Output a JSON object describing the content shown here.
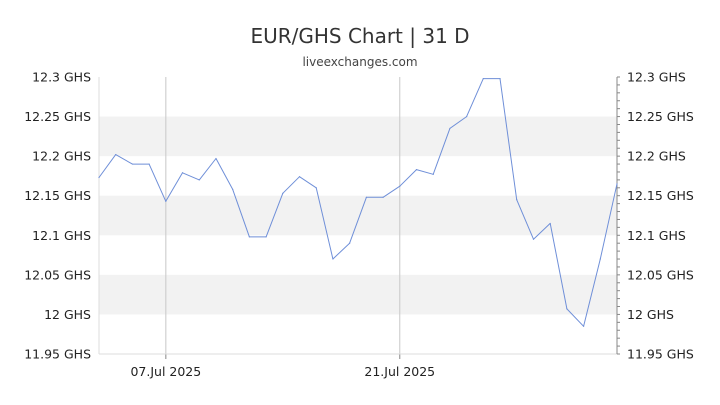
{
  "header": {
    "title": "EUR/GHS Chart | 31 D",
    "subtitle": "liveexchanges.com"
  },
  "colors": {
    "line": "#6f8fd8",
    "band": "#f2f2f2",
    "vgrid": "#c8c8c8",
    "axis": "#888888"
  },
  "chart_data": {
    "type": "line",
    "title": "EUR/GHS Chart | 31 D",
    "xlabel": "",
    "ylabel": "",
    "ylim": [
      11.95,
      12.3
    ],
    "grid": "alternating horizontal bands, vertical lines at date ticks",
    "legend": "none",
    "y_ticks_left": [
      "11.95 GHS",
      "12 GHS",
      "12.05 GHS",
      "12.1 GHS",
      "12.15 GHS",
      "12.2 GHS",
      "12.25 GHS",
      "12.3 GHS"
    ],
    "y_ticks_right": [
      "11.95 GHS",
      "12 GHS",
      "12.05 GHS",
      "12.1 GHS",
      "12.15 GHS",
      "12.2 GHS",
      "12.25 GHS",
      "12.3 GHS"
    ],
    "x_ticks": [
      {
        "label": "07.Jul 2025",
        "date": "2025-07-07"
      },
      {
        "label": "21.Jul 2025",
        "date": "2025-07-21"
      }
    ],
    "series": [
      {
        "x": [
          "2025-07-03",
          "2025-07-04",
          "2025-07-05",
          "2025-07-06",
          "2025-07-07",
          "2025-07-08",
          "2025-07-09",
          "2025-07-10",
          "2025-07-11",
          "2025-07-12",
          "2025-07-13",
          "2025-07-14",
          "2025-07-15",
          "2025-07-16",
          "2025-07-17",
          "2025-07-18",
          "2025-07-19",
          "2025-07-20",
          "2025-07-21",
          "2025-07-22",
          "2025-07-23",
          "2025-07-24",
          "2025-07-25",
          "2025-07-26",
          "2025-07-27",
          "2025-07-28",
          "2025-07-29",
          "2025-07-30",
          "2025-07-31",
          "2025-08-01",
          "2025-08-02",
          "2025-08-03"
        ],
        "values": [
          12.173,
          12.202,
          12.19,
          12.19,
          12.143,
          12.179,
          12.17,
          12.197,
          12.158,
          12.098,
          12.098,
          12.153,
          12.174,
          12.16,
          12.07,
          12.09,
          12.148,
          12.148,
          12.162,
          12.183,
          12.177,
          12.235,
          12.25,
          12.298,
          12.298,
          12.145,
          12.095,
          12.115,
          12.007,
          11.985,
          12.07,
          12.165
        ]
      }
    ]
  }
}
